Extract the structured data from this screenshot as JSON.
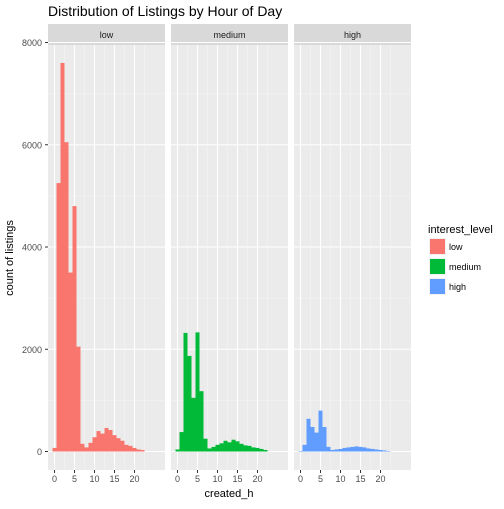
{
  "chart_data": {
    "type": "bar",
    "title": "Distribution of Listings by Hour of Day",
    "xlabel": "created_h",
    "ylabel": "count of listings",
    "ylim": [
      0,
      8000
    ],
    "xlim": [
      0,
      23
    ],
    "x_ticks": [
      "0",
      "5",
      "10",
      "15",
      "20"
    ],
    "y_ticks": [
      "0",
      "2000",
      "4000",
      "6000",
      "8000"
    ],
    "grid": true,
    "facets": [
      "low",
      "medium",
      "high"
    ],
    "legend_title": "interest_level",
    "legend_position": "right",
    "x": [
      0,
      1,
      2,
      3,
      4,
      5,
      6,
      7,
      8,
      9,
      10,
      11,
      12,
      13,
      14,
      15,
      16,
      17,
      18,
      19,
      20,
      21,
      22,
      23
    ],
    "series": [
      {
        "name": "low",
        "color": "#F8766D",
        "values": [
          70,
          5250,
          7600,
          6050,
          3500,
          4800,
          2050,
          150,
          80,
          170,
          280,
          400,
          350,
          460,
          420,
          320,
          260,
          210,
          130,
          110,
          70,
          40,
          30,
          0
        ]
      },
      {
        "name": "medium",
        "color": "#00BA38",
        "values": [
          40,
          380,
          2320,
          1870,
          1050,
          2330,
          1180,
          250,
          60,
          90,
          130,
          160,
          210,
          180,
          230,
          200,
          150,
          120,
          110,
          80,
          70,
          50,
          30,
          0
        ]
      },
      {
        "name": "high",
        "color": "#619CFF",
        "values": [
          10,
          130,
          640,
          480,
          370,
          800,
          480,
          90,
          30,
          40,
          50,
          70,
          80,
          90,
          100,
          90,
          80,
          60,
          50,
          40,
          30,
          20,
          10,
          0
        ]
      }
    ]
  }
}
